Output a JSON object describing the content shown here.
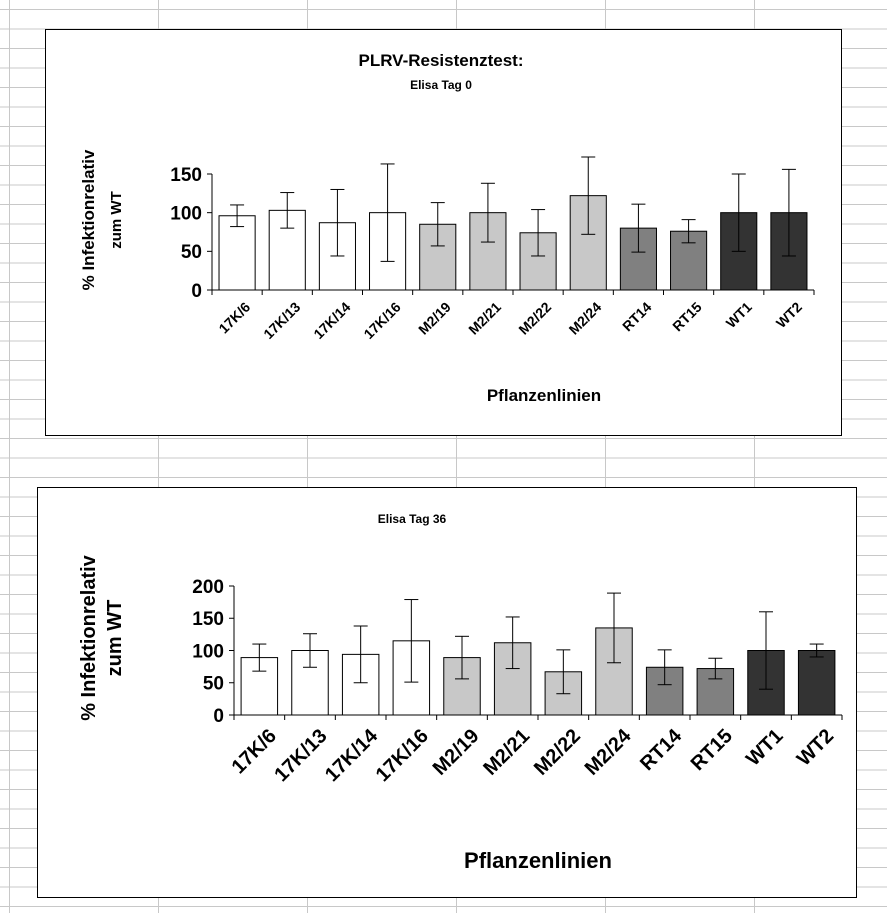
{
  "chart_data": [
    {
      "type": "bar",
      "title": "PLRV-Resistenztest:",
      "subtitle": "Elisa Tag 0",
      "xlabel": "Pflanzenlinien",
      "ylabel_line1": "% Infektionrelativ",
      "ylabel_line2": "zum WT",
      "ylim": [
        0,
        150
      ],
      "yticks": [
        "0",
        "50",
        "100",
        "150"
      ],
      "categories": [
        "17K/6",
        "17K/13",
        "17K/14",
        "17K/16",
        "M2/19",
        "M2/21",
        "M2/22",
        "M2/24",
        "RT14",
        "RT15",
        "WT1",
        "WT2"
      ],
      "values": [
        96,
        103,
        87,
        100,
        85,
        100,
        74,
        122,
        80,
        76,
        100,
        100
      ],
      "errors": [
        14,
        23,
        43,
        63,
        28,
        38,
        30,
        50,
        31,
        15,
        50,
        56
      ],
      "colors": [
        "#ffffff",
        "#ffffff",
        "#ffffff",
        "#ffffff",
        "#c8c8c8",
        "#c8c8c8",
        "#c8c8c8",
        "#c8c8c8",
        "#808080",
        "#808080",
        "#333333",
        "#333333"
      ],
      "grid": false,
      "legend": "none"
    },
    {
      "type": "bar",
      "title": "Elisa Tag 36",
      "xlabel": "Pflanzenlinien",
      "ylabel_line1": "% Infektionrelativ",
      "ylabel_line2": "zum WT",
      "ylim": [
        0,
        200
      ],
      "yticks": [
        "0",
        "50",
        "100",
        "150",
        "200"
      ],
      "categories": [
        "17K/6",
        "17K/13",
        "17K/14",
        "17K/16",
        "M2/19",
        "M2/21",
        "M2/22",
        "M2/24",
        "RT14",
        "RT15",
        "WT1",
        "WT2"
      ],
      "values": [
        89,
        100,
        94,
        115,
        89,
        112,
        67,
        135,
        74,
        72,
        100,
        100
      ],
      "errors": [
        21,
        26,
        44,
        64,
        33,
        40,
        34,
        54,
        27,
        16,
        60,
        10
      ],
      "colors": [
        "#ffffff",
        "#ffffff",
        "#ffffff",
        "#ffffff",
        "#c8c8c8",
        "#c8c8c8",
        "#c8c8c8",
        "#c8c8c8",
        "#808080",
        "#808080",
        "#333333",
        "#333333"
      ],
      "grid": false,
      "legend": "none"
    }
  ]
}
